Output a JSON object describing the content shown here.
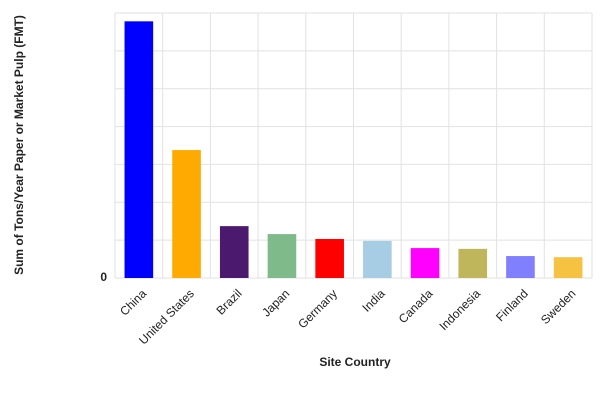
{
  "chart_data": {
    "type": "bar",
    "x_label": "Site Country",
    "y_label": "Sum of Tons/Year Paper or Market Pulp (FMT)",
    "categories": [
      "China",
      "United States",
      "Brazil",
      "Japan",
      "Germany",
      "India",
      "Canada",
      "Indonesia",
      "Finland",
      "Sweden"
    ],
    "values": [
      6.78,
      3.38,
      1.37,
      1.16,
      1.03,
      0.98,
      0.79,
      0.77,
      0.58,
      0.55
    ],
    "colors": [
      "#0000ff",
      "#ffaa00",
      "#4b1a6e",
      "#7fba8a",
      "#ff0000",
      "#a6cde4",
      "#ff00ff",
      "#bfb55a",
      "#8080ff",
      "#f5c242"
    ],
    "ylim": [
      0,
      7
    ],
    "yticks": [
      0
    ],
    "gridlines": [
      0,
      1,
      2,
      3,
      4,
      5,
      6,
      7
    ],
    "grid": true
  }
}
